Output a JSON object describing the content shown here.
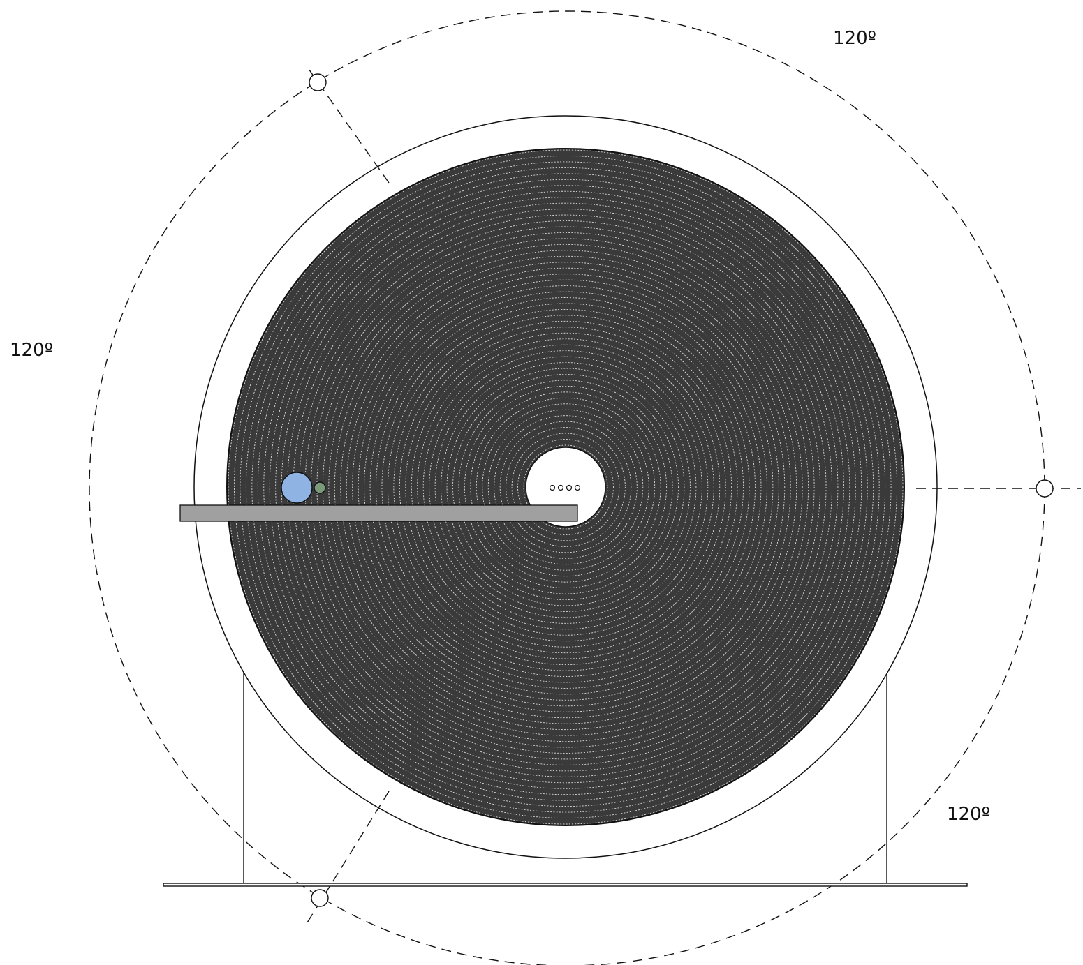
{
  "angle_labels": {
    "top_right": "120º",
    "left": "120º",
    "bottom_right": "120º"
  },
  "colors": {
    "disc_fill": "#3a3a3a",
    "ring_line": "#dcdcdc",
    "arm": "#a0a0a0",
    "blue_marker": "#8fb4e3",
    "green_marker": "#7a9a7a"
  },
  "rings": {
    "count": 50,
    "spacing_px": 9.3
  },
  "bolt_circle_divisions_deg": 120,
  "center_hub_dots": 4
}
